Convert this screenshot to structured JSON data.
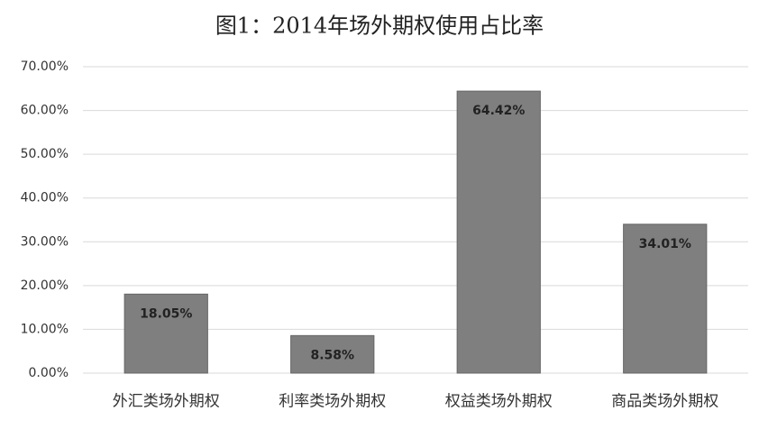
{
  "chart_data": {
    "type": "bar",
    "title": "图1：2014年场外期权使用占比率",
    "categories": [
      "外汇类场外期权",
      "利率类场外期权",
      "权益类场外期权",
      "商品类场外期权"
    ],
    "values": [
      18.05,
      8.58,
      64.42,
      34.01
    ],
    "value_labels": [
      "18.05%",
      "8.58%",
      "64.42%",
      "34.01%"
    ],
    "color": "#7f7f7f",
    "ylim": [
      0,
      70
    ],
    "yticks": [
      {
        "value": 0,
        "label": "0.00%"
      },
      {
        "value": 10,
        "label": "10.00%"
      },
      {
        "value": 20,
        "label": "20.00%"
      },
      {
        "value": 30,
        "label": "30.00%"
      },
      {
        "value": 40,
        "label": "40.00%"
      },
      {
        "value": 50,
        "label": "50.00%"
      },
      {
        "value": 60,
        "label": "60.00%"
      },
      {
        "value": 70,
        "label": "70.00%"
      }
    ],
    "grid": true
  }
}
